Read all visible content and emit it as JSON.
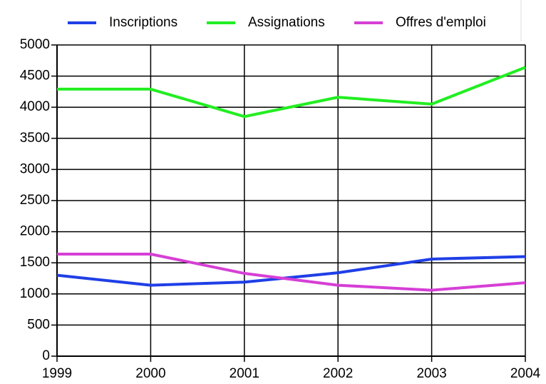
{
  "chart_data": {
    "type": "line",
    "x": [
      1999,
      2000,
      2001,
      2002,
      2003,
      2004
    ],
    "xlim": [
      1999,
      2004
    ],
    "xticks": [
      1999,
      2000,
      2001,
      2002,
      2003,
      2004
    ],
    "ylim": [
      0,
      5000
    ],
    "yticks": [
      0,
      500,
      1000,
      1500,
      2000,
      2500,
      3000,
      3500,
      4000,
      4500,
      5000
    ],
    "grid": true,
    "legend": "top",
    "series": [
      {
        "name": "Inscriptions",
        "color": "#1f3fe6",
        "values": [
          1300,
          1140,
          1190,
          1340,
          1560,
          1600
        ]
      },
      {
        "name": "Assignations",
        "color": "#22ee22",
        "values": [
          4290,
          4290,
          3850,
          4160,
          4050,
          4640
        ]
      },
      {
        "name": "Offres d'emploi",
        "color": "#d63fd6",
        "values": [
          1640,
          1640,
          1330,
          1140,
          1060,
          1180
        ]
      }
    ]
  }
}
